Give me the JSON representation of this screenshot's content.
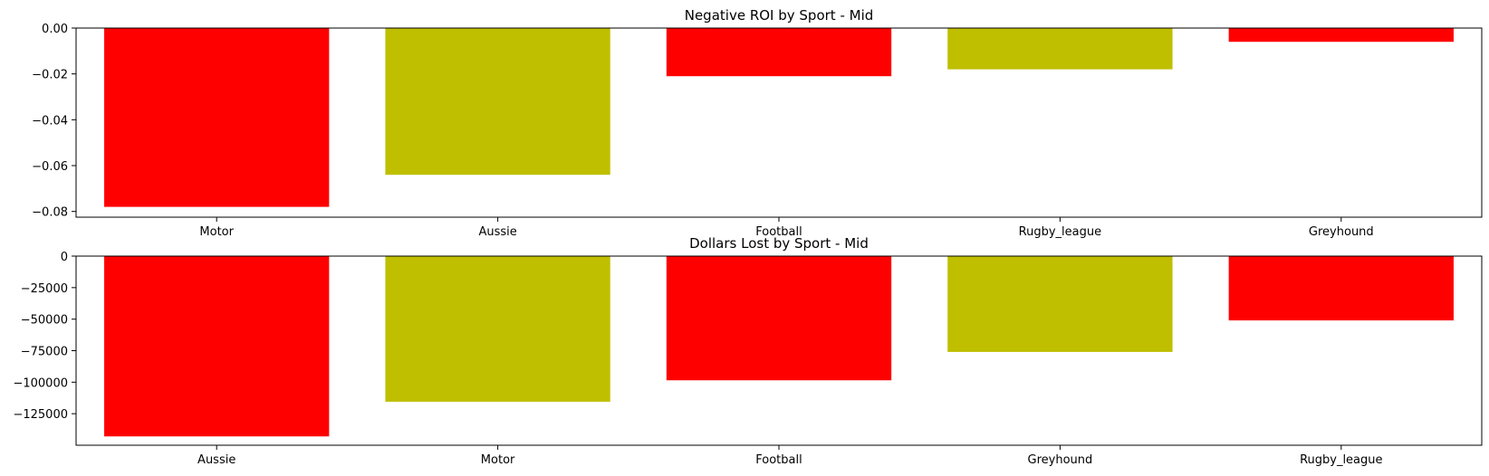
{
  "chart_data": [
    {
      "type": "bar",
      "title": "Negative ROI by Sport - Mid",
      "xlabel": "",
      "ylabel": "",
      "categories": [
        "Motor",
        "Aussie",
        "Football",
        "Rugby_league",
        "Greyhound"
      ],
      "values": [
        -0.078,
        -0.064,
        -0.021,
        -0.018,
        -0.006
      ],
      "colors": [
        "#ff0000",
        "#bfbf00",
        "#ff0000",
        "#bfbf00",
        "#ff0000"
      ],
      "ylim": [
        -0.0825,
        0.0
      ],
      "yticks": [
        0.0,
        -0.02,
        -0.04,
        -0.06,
        -0.08
      ],
      "ytick_labels": [
        "0.00",
        "−0.02",
        "−0.04",
        "−0.06",
        "−0.08"
      ],
      "grid": false
    },
    {
      "type": "bar",
      "title": "Dollars Lost by Sport - Mid",
      "xlabel": "",
      "ylabel": "",
      "categories": [
        "Aussie",
        "Motor",
        "Football",
        "Greyhound",
        "Rugby_league"
      ],
      "values": [
        -143000,
        -115500,
        -98500,
        -76000,
        -51000
      ],
      "colors": [
        "#ff0000",
        "#bfbf00",
        "#ff0000",
        "#bfbf00",
        "#ff0000"
      ],
      "ylim": [
        -150000,
        0
      ],
      "yticks": [
        0,
        -25000,
        -50000,
        -75000,
        -100000,
        -125000
      ],
      "ytick_labels": [
        "0",
        "−25000",
        "−50000",
        "−75000",
        "−100000",
        "−125000"
      ],
      "grid": false
    }
  ]
}
